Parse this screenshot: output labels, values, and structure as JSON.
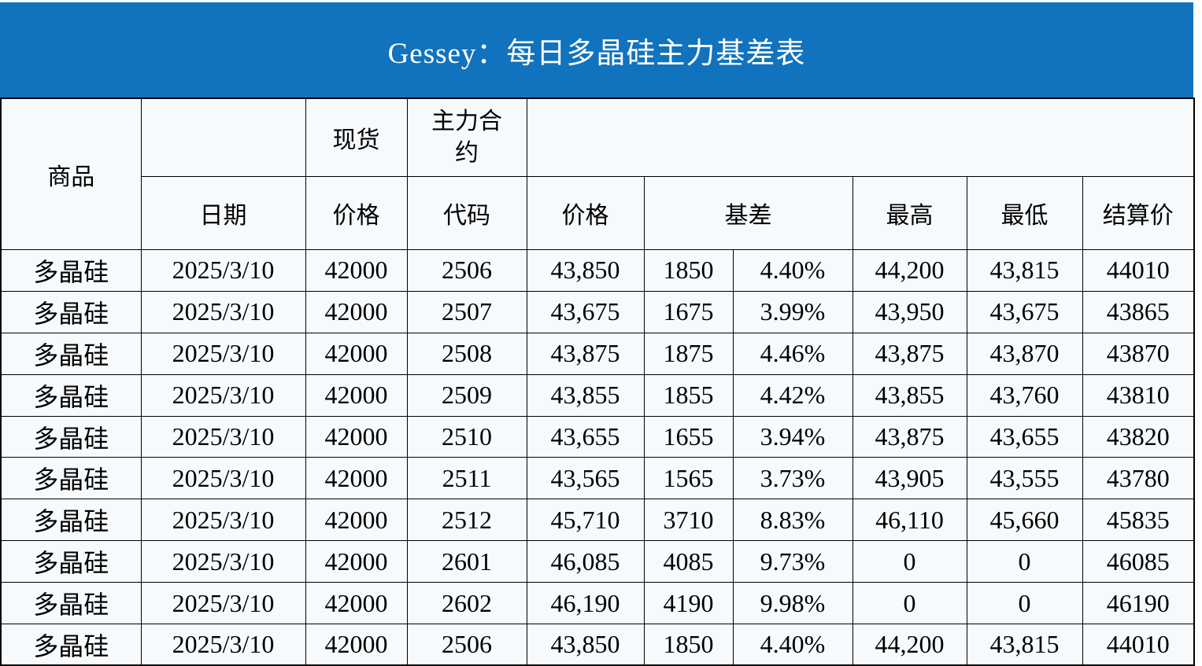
{
  "title": "Gessey：每日多晶硅主力基差表",
  "colors": {
    "banner_blue": "#1173BD",
    "header_lavender": "#E7ECF6",
    "cell_background": "#F7FAFD",
    "basis_red": "#FB0000",
    "commodity_blue": "#2220EC",
    "date_blue": "#2F4E8F",
    "border_black": "#000000"
  },
  "header": {
    "commodity": "商品",
    "spot_group": "现货",
    "main_contract_group": "主力合约",
    "date": "日期",
    "spot_price": "价格",
    "code": "代码",
    "price": "价格",
    "basis": "基差",
    "high": "最高",
    "low": "最低",
    "settlement": "结算价"
  },
  "rows": [
    {
      "commodity": "多晶硅",
      "date": "2025/3/10",
      "spot_price": "42000",
      "code": "2506",
      "price": "43,850",
      "basis": "1850",
      "basis_pct": "4.40%",
      "high": "44,200",
      "low": "43,815",
      "settlement": "44010"
    },
    {
      "commodity": "多晶硅",
      "date": "2025/3/10",
      "spot_price": "42000",
      "code": "2507",
      "price": "43,675",
      "basis": "1675",
      "basis_pct": "3.99%",
      "high": "43,950",
      "low": "43,675",
      "settlement": "43865"
    },
    {
      "commodity": "多晶硅",
      "date": "2025/3/10",
      "spot_price": "42000",
      "code": "2508",
      "price": "43,875",
      "basis": "1875",
      "basis_pct": "4.46%",
      "high": "43,875",
      "low": "43,870",
      "settlement": "43870"
    },
    {
      "commodity": "多晶硅",
      "date": "2025/3/10",
      "spot_price": "42000",
      "code": "2509",
      "price": "43,855",
      "basis": "1855",
      "basis_pct": "4.42%",
      "high": "43,855",
      "low": "43,760",
      "settlement": "43810"
    },
    {
      "commodity": "多晶硅",
      "date": "2025/3/10",
      "spot_price": "42000",
      "code": "2510",
      "price": "43,655",
      "basis": "1655",
      "basis_pct": "3.94%",
      "high": "43,875",
      "low": "43,655",
      "settlement": "43820"
    },
    {
      "commodity": "多晶硅",
      "date": "2025/3/10",
      "spot_price": "42000",
      "code": "2511",
      "price": "43,565",
      "basis": "1565",
      "basis_pct": "3.73%",
      "high": "43,905",
      "low": "43,555",
      "settlement": "43780"
    },
    {
      "commodity": "多晶硅",
      "date": "2025/3/10",
      "spot_price": "42000",
      "code": "2512",
      "price": "45,710",
      "basis": "3710",
      "basis_pct": "8.83%",
      "high": "46,110",
      "low": "45,660",
      "settlement": "45835"
    },
    {
      "commodity": "多晶硅",
      "date": "2025/3/10",
      "spot_price": "42000",
      "code": "2601",
      "price": "46,085",
      "basis": "4085",
      "basis_pct": "9.73%",
      "high": "0",
      "low": "0",
      "settlement": "46085"
    },
    {
      "commodity": "多晶硅",
      "date": "2025/3/10",
      "spot_price": "42000",
      "code": "2602",
      "price": "46,190",
      "basis": "4190",
      "basis_pct": "9.98%",
      "high": "0",
      "low": "0",
      "settlement": "46190"
    },
    {
      "commodity": "多晶硅",
      "date": "2025/3/10",
      "spot_price": "42000",
      "code": "2506",
      "price": "43,850",
      "basis": "1850",
      "basis_pct": "4.40%",
      "high": "44,200",
      "low": "43,815",
      "settlement": "44010"
    }
  ]
}
